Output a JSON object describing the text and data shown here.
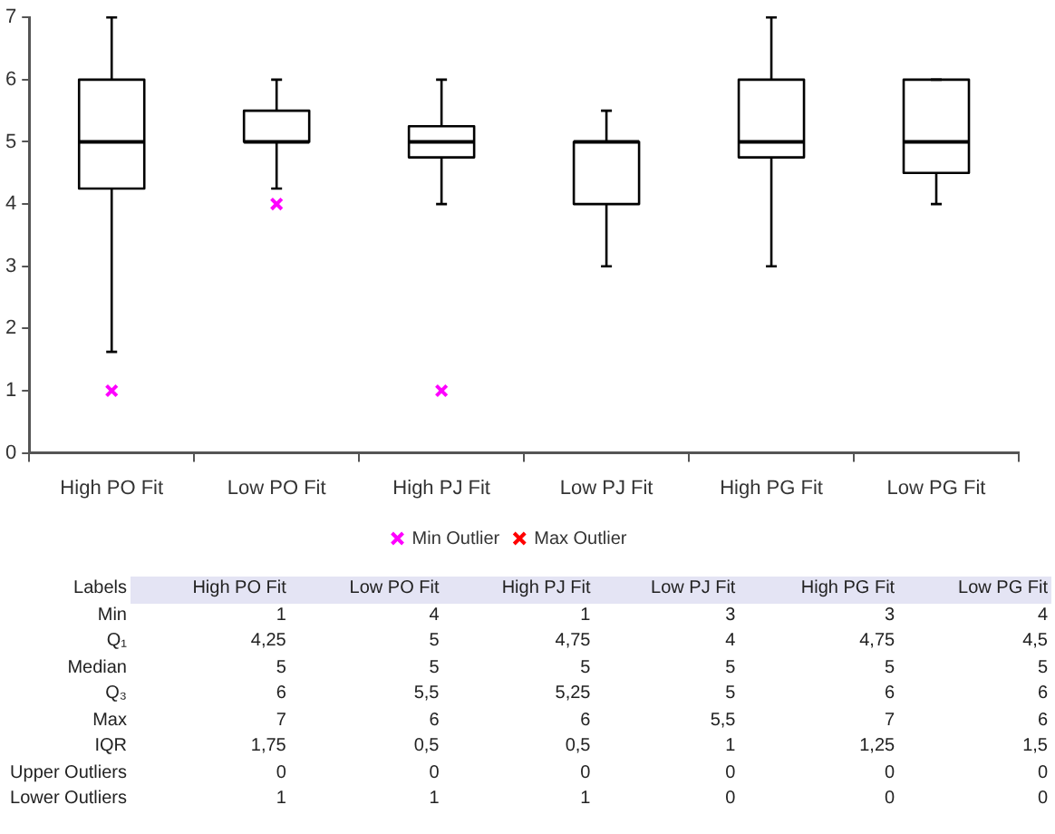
{
  "chart_data": [
    {
      "type": "box",
      "categories": [
        "High PO Fit",
        "Low PO Fit",
        "High PJ Fit",
        "Low PJ Fit",
        "High PG Fit",
        "Low PG Fit"
      ],
      "ylim": [
        0,
        7
      ],
      "yticks": [
        0,
        1,
        2,
        3,
        4,
        5,
        6,
        7
      ],
      "grid": false,
      "legend": "bottom",
      "series": [
        {
          "type": "box",
          "color": "#000000",
          "boxes": [
            {
              "low": 1.625,
              "q1": 4.25,
              "median": 5,
              "q3": 6,
              "high": 7
            },
            {
              "low": 4.25,
              "q1": 5,
              "median": 5,
              "q3": 5.5,
              "high": 6
            },
            {
              "low": 4,
              "q1": 4.75,
              "median": 5,
              "q3": 5.25,
              "high": 6
            },
            {
              "low": 3,
              "q1": 4,
              "median": 5,
              "q3": 5,
              "high": 5.5
            },
            {
              "low": 3,
              "q1": 4.75,
              "median": 5,
              "q3": 6,
              "high": 7
            },
            {
              "low": 4,
              "q1": 4.5,
              "median": 5,
              "q3": 6,
              "high": 6
            }
          ]
        },
        {
          "type": "scatter",
          "name": "Min Outlier",
          "color": "#ff00ff",
          "marker": "cross",
          "x": [
            "High PO Fit",
            "Low PO Fit",
            "High PJ Fit",
            "Low PJ Fit",
            "High PG Fit",
            "Low PG Fit"
          ],
          "values": [
            1,
            4,
            1,
            null,
            null,
            null
          ]
        },
        {
          "type": "scatter",
          "name": "Max Outlier",
          "color": "#ff0000",
          "marker": "cross",
          "x": [
            "High PO Fit",
            "Low PO Fit",
            "High PJ Fit",
            "Low PJ Fit",
            "High PG Fit",
            "Low PG Fit"
          ],
          "values": [
            null,
            null,
            null,
            null,
            null,
            null
          ]
        }
      ]
    },
    {
      "type": "other",
      "ylabel": "Labels",
      "categories": [
        "High PO Fit",
        "Low PO Fit",
        "High PJ Fit",
        "Low PJ Fit",
        "High PG Fit",
        "Low PG Fit"
      ],
      "y_categories": [
        "Min",
        "Q₁",
        "Median",
        "Q₃",
        "Max",
        "IQR",
        "Upper Outliers",
        "Lower Outliers"
      ],
      "cell_labels": [
        [
          "1",
          "4",
          "1",
          "3",
          "3",
          "4"
        ],
        [
          "4,25",
          "5",
          "4,75",
          "4",
          "4,75",
          "4,5"
        ],
        [
          "5",
          "5",
          "5",
          "5",
          "5",
          "5"
        ],
        [
          "6",
          "5,5",
          "5,25",
          "5",
          "6",
          "6"
        ],
        [
          "7",
          "6",
          "6",
          "5,5",
          "7",
          "6"
        ],
        [
          "1,75",
          "0,5",
          "0,5",
          "1",
          "1,25",
          "1,5"
        ],
        [
          "0",
          "0",
          "0",
          "0",
          "0",
          "0"
        ],
        [
          "1",
          "1",
          "1",
          "0",
          "0",
          "0"
        ]
      ]
    }
  ]
}
